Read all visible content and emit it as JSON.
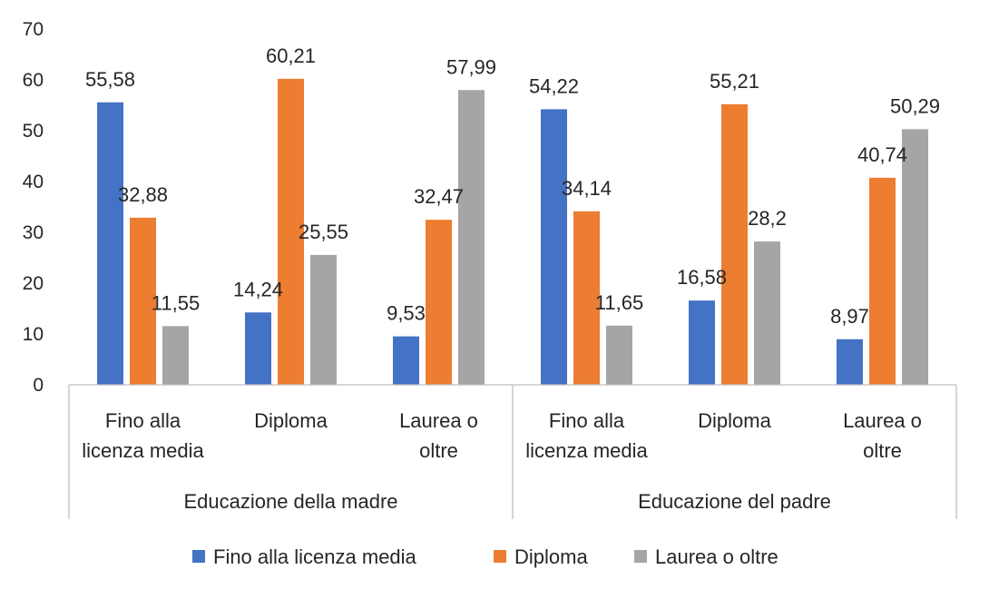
{
  "chart_data": {
    "type": "bar",
    "title": "",
    "xlabel": "",
    "ylabel": "",
    "ylim": [
      0,
      70
    ],
    "yticks": [
      "0",
      "10",
      "20",
      "30",
      "40",
      "50",
      "60",
      "70"
    ],
    "grid": false,
    "legend_position": "bottom",
    "groups": [
      {
        "label": "Educazione della madre",
        "categories": [
          {
            "lines": [
              "Fino alla",
              "licenza media"
            ]
          },
          {
            "lines": [
              "Diploma"
            ]
          },
          {
            "lines": [
              "Laurea o",
              "oltre"
            ]
          }
        ]
      },
      {
        "label": "Educazione del padre",
        "categories": [
          {
            "lines": [
              "Fino alla",
              "licenza media"
            ]
          },
          {
            "lines": [
              "Diploma"
            ]
          },
          {
            "lines": [
              "Laurea o",
              "oltre"
            ]
          }
        ]
      }
    ],
    "series": [
      {
        "name": "Fino alla licenza media",
        "color": "#4472c4",
        "values": [
          55.58,
          14.24,
          9.53,
          54.22,
          16.58,
          8.97
        ],
        "labels": [
          "55,58",
          "14,24",
          "9,53",
          "54,22",
          "16,58",
          "8,97"
        ]
      },
      {
        "name": "Diploma",
        "color": "#ed7d31",
        "values": [
          32.88,
          60.21,
          32.47,
          34.14,
          55.21,
          40.74
        ],
        "labels": [
          "32,88",
          "60,21",
          "32,47",
          "34,14",
          "55,21",
          "40,74"
        ]
      },
      {
        "name": "Laurea o oltre",
        "color": "#a5a5a5",
        "values": [
          11.55,
          25.55,
          57.99,
          11.65,
          28.2,
          50.29
        ],
        "labels": [
          "11,55",
          "25,55",
          "57,99",
          "11,65",
          "28,2",
          "50,29"
        ]
      }
    ]
  }
}
